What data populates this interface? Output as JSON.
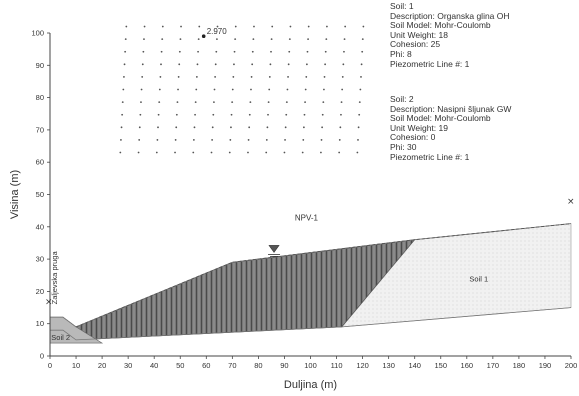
{
  "figure": {
    "ylabel": "Visina (m)",
    "xlabel": "Duljina (m)",
    "x_ticks": [
      "0",
      "10",
      "20",
      "30",
      "40",
      "50",
      "60",
      "70",
      "80",
      "90",
      "100",
      "110",
      "120",
      "130",
      "140",
      "150",
      "160",
      "170",
      "180",
      "190",
      "200"
    ],
    "y_ticks": [
      "0",
      "10",
      "20",
      "30",
      "40",
      "50",
      "60",
      "70",
      "80",
      "90",
      "100"
    ],
    "x_range": [
      0,
      200
    ],
    "y_range": [
      0,
      100
    ],
    "grid_center_label": "2.970",
    "piezometric_label": "NPV-1",
    "vertical_annotation": "Zaljevska pruga",
    "soil1_region_label": "Soil 1",
    "soil2_region_label": "Soil 2",
    "entry_marker_symbol": "×",
    "exit_marker_symbol": "×"
  },
  "soil_legend": [
    {
      "name": "Soil: 1",
      "description": "Description: Organska glina OH",
      "model": "Soil Model: Mohr-Coulomb",
      "unit_weight": "Unit Weight: 18",
      "cohesion": "Cohesion: 25",
      "phi": "Phi: 8",
      "piezometric": "Piezometric Line #: 1"
    },
    {
      "name": "Soil: 2",
      "description": "Description: Nasipni šljunak GW",
      "model": "Soil Model: Mohr-Coulomb",
      "unit_weight": "Unit Weight: 19",
      "cohesion": "Cohesion: 0",
      "phi": "Phi: 30",
      "piezometric": "Piezometric Line #: 1"
    }
  ],
  "geometry": {
    "ground_surface": [
      [
        0,
        12
      ],
      [
        5,
        12
      ],
      [
        10,
        9
      ],
      [
        70,
        29
      ],
      [
        140,
        36
      ],
      [
        200,
        41
      ]
    ],
    "soil1_bottom": [
      [
        0,
        8
      ],
      [
        5,
        8
      ],
      [
        10,
        5
      ],
      [
        112,
        9
      ],
      [
        200,
        15
      ]
    ],
    "hatched_zone_right": [
      [
        140,
        36
      ],
      [
        112,
        9
      ]
    ],
    "soil2_polygon": [
      [
        0,
        12
      ],
      [
        5,
        12
      ],
      [
        10,
        9
      ],
      [
        20,
        4
      ],
      [
        0,
        4
      ]
    ],
    "piezometric_line": [
      [
        10,
        9
      ],
      [
        70,
        29
      ],
      [
        140,
        36
      ],
      [
        200,
        41
      ]
    ],
    "water_marker": [
      86,
      33
    ],
    "slip_grid": {
      "x_range": [
        27,
        118
      ],
      "y_range": [
        63,
        102
      ],
      "cols": 14,
      "rows": 11,
      "center": [
        59,
        99
      ]
    }
  },
  "colors": {
    "hatch": "#6a6a6a",
    "soil1_fill": "#efefef",
    "soil2_fill": "#b5b5b5",
    "axis": "#444444"
  }
}
